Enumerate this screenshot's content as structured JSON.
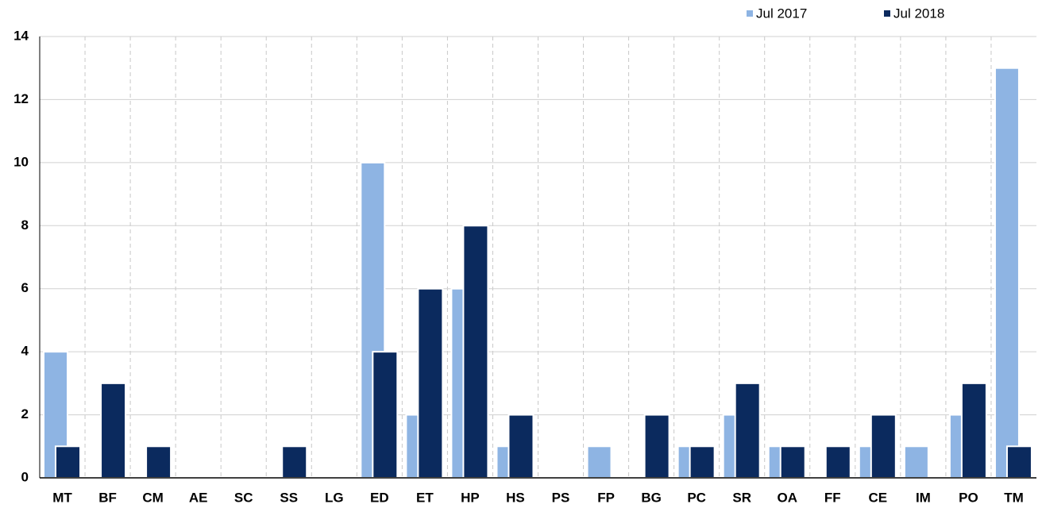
{
  "chart_data": {
    "type": "bar",
    "categories": [
      "MT",
      "BF",
      "CM",
      "AE",
      "SC",
      "SS",
      "LG",
      "ED",
      "ET",
      "HP",
      "HS",
      "PS",
      "FP",
      "BG",
      "PC",
      "SR",
      "OA",
      "FF",
      "CE",
      "IM",
      "PO",
      "TM"
    ],
    "series": [
      {
        "name": "Jul 2017",
        "color": "#8eb4e3",
        "values": [
          4,
          0,
          0,
          0,
          0,
          0,
          0,
          10,
          2,
          6,
          1,
          0,
          1,
          0,
          1,
          2,
          1,
          0,
          1,
          1,
          2,
          13
        ]
      },
      {
        "name": "Jul 2018",
        "color": "#0b2a5e",
        "values": [
          1,
          3,
          1,
          0,
          0,
          1,
          0,
          4,
          6,
          8,
          2,
          0,
          0,
          2,
          1,
          3,
          1,
          1,
          2,
          0,
          3,
          1
        ]
      }
    ],
    "ylim": [
      0,
      14
    ],
    "yticks": [
      0,
      2,
      4,
      6,
      8,
      10,
      12,
      14
    ],
    "grid": true,
    "legend": "top-right"
  }
}
